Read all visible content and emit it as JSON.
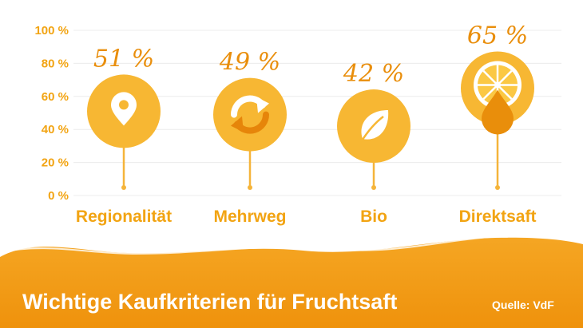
{
  "chart_data": {
    "type": "bar",
    "title": "Wichtige Kaufkriterien für Fruchtsaft",
    "categories": [
      "Regionalität",
      "Mehrweg",
      "Bio",
      "Direktsaft"
    ],
    "values": [
      51,
      49,
      42,
      65
    ],
    "value_labels": [
      "51 %",
      "49 %",
      "42 %",
      "65 %"
    ],
    "icons": [
      "location-pin-icon",
      "recycle-arrows-icon",
      "leaf-icon",
      "orange-slice-drop-icon"
    ],
    "yticks": [
      "0 %",
      "20 %",
      "40 %",
      "60 %",
      "80 %",
      "100 %"
    ],
    "ylim": [
      0,
      100
    ],
    "grid": true,
    "source": "Quelle: VdF"
  },
  "colors": {
    "accent": "#f2a413",
    "circle": "#f7b733",
    "value_text": "#e98e0b",
    "footer_wave": "#f29c0f",
    "gridline": "#ececec"
  }
}
